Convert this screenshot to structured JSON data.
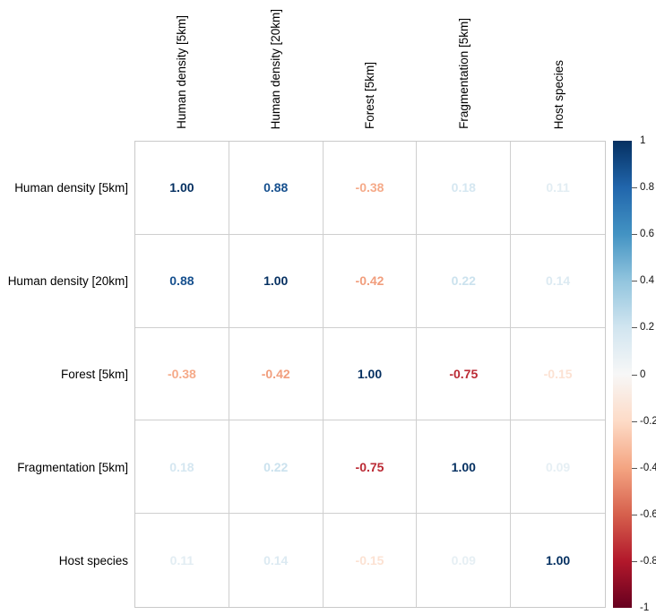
{
  "chart_data": {
    "type": "heatmap",
    "subtype": "correlation-matrix-colored-numbers",
    "variables": [
      "Human density [5km]",
      "Human density [20km]",
      "Forest [5km]",
      "Fragmentation [5km]",
      "Host species"
    ],
    "matrix": [
      [
        1.0,
        0.88,
        -0.38,
        0.18,
        0.11
      ],
      [
        0.88,
        1.0,
        -0.42,
        0.22,
        0.14
      ],
      [
        -0.38,
        -0.42,
        1.0,
        -0.75,
        -0.15
      ],
      [
        0.18,
        0.22,
        -0.75,
        1.0,
        0.09
      ],
      [
        0.11,
        0.14,
        -0.15,
        0.09,
        1.0
      ]
    ],
    "value_decimals": 2,
    "cell_background": "#ffffff",
    "grid_line_color": "#cfcfcf",
    "text_encoding": "number color maps to correlation value (RdBu diverging)",
    "colorbar": {
      "position": "right",
      "range": [
        -1,
        1
      ],
      "tick_labels": [
        "1",
        "0.8",
        "0.6",
        "0.4",
        "0.2",
        "0",
        "-0.2",
        "-0.4",
        "-0.6",
        "-0.8",
        "-1"
      ],
      "tick_values": [
        1,
        0.8,
        0.6,
        0.4,
        0.2,
        0,
        -0.2,
        -0.4,
        -0.6,
        -0.8,
        -1
      ],
      "palette_low_to_high": [
        "#67001f",
        "#b2182b",
        "#d6604d",
        "#f4a582",
        "#fddbc7",
        "#f7f7f7",
        "#d1e5f0",
        "#92c5de",
        "#4393c3",
        "#2166ac",
        "#053061"
      ]
    }
  }
}
